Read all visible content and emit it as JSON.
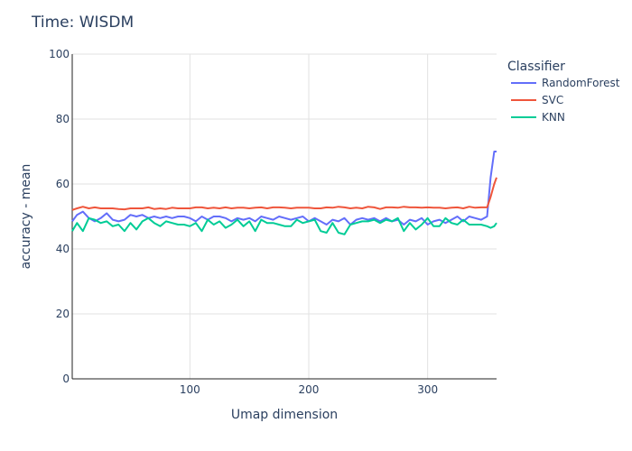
{
  "chart_data": {
    "type": "line",
    "title": "Time: WISDM",
    "xlabel": "Umap dimension",
    "ylabel": "accuracy - mean",
    "xlim": [
      1,
      358
    ],
    "ylim": [
      0,
      100
    ],
    "xticks": [
      100,
      200,
      300
    ],
    "yticks": [
      0,
      20,
      40,
      60,
      80,
      100
    ],
    "grid": true,
    "legend": {
      "title": "Classifier",
      "position": "right"
    },
    "series": [
      {
        "name": "RandomForest",
        "color": "#636efa",
        "x": [
          1,
          5,
          10,
          15,
          20,
          25,
          30,
          35,
          40,
          45,
          50,
          55,
          60,
          65,
          70,
          75,
          80,
          85,
          90,
          95,
          100,
          105,
          110,
          115,
          120,
          125,
          130,
          135,
          140,
          145,
          150,
          155,
          160,
          165,
          170,
          175,
          180,
          185,
          190,
          195,
          200,
          205,
          210,
          215,
          220,
          225,
          230,
          235,
          240,
          245,
          250,
          255,
          260,
          265,
          270,
          275,
          280,
          285,
          290,
          295,
          300,
          305,
          310,
          315,
          320,
          325,
          330,
          335,
          340,
          345,
          350,
          353,
          356,
          358
        ],
        "y": [
          48.5,
          50.5,
          51.5,
          49.5,
          48.5,
          49.5,
          51.0,
          49.0,
          48.5,
          49.0,
          50.5,
          50.0,
          50.5,
          49.5,
          50.0,
          49.5,
          50.0,
          49.5,
          50.0,
          50.0,
          49.5,
          48.5,
          50.0,
          49.0,
          50.0,
          50.0,
          49.5,
          48.5,
          49.5,
          49.0,
          49.5,
          48.5,
          50.0,
          49.5,
          49.0,
          50.0,
          49.5,
          49.0,
          49.5,
          50.0,
          48.5,
          49.5,
          48.5,
          47.5,
          49.0,
          48.5,
          49.5,
          47.5,
          49.0,
          49.5,
          49.0,
          49.5,
          48.5,
          49.5,
          48.5,
          49.0,
          47.5,
          49.0,
          48.5,
          49.5,
          47.5,
          48.5,
          49.0,
          48.0,
          49.0,
          50.0,
          48.5,
          50.0,
          49.5,
          49.0,
          50.0,
          62.0,
          70.0,
          70.0
        ]
      },
      {
        "name": "SVC",
        "color": "#ef553b",
        "x": [
          1,
          5,
          10,
          15,
          20,
          25,
          30,
          35,
          40,
          45,
          50,
          55,
          60,
          65,
          70,
          75,
          80,
          85,
          90,
          95,
          100,
          105,
          110,
          115,
          120,
          125,
          130,
          135,
          140,
          145,
          150,
          155,
          160,
          165,
          170,
          175,
          180,
          185,
          190,
          195,
          200,
          205,
          210,
          215,
          220,
          225,
          230,
          235,
          240,
          245,
          250,
          255,
          260,
          265,
          270,
          275,
          280,
          285,
          290,
          295,
          300,
          305,
          310,
          315,
          320,
          325,
          330,
          335,
          340,
          345,
          350,
          353,
          356,
          358
        ],
        "y": [
          52.0,
          52.5,
          53.0,
          52.5,
          52.8,
          52.5,
          52.5,
          52.5,
          52.3,
          52.2,
          52.5,
          52.5,
          52.5,
          52.8,
          52.3,
          52.5,
          52.3,
          52.7,
          52.5,
          52.5,
          52.5,
          52.8,
          52.8,
          52.5,
          52.7,
          52.5,
          52.8,
          52.5,
          52.7,
          52.7,
          52.5,
          52.7,
          52.8,
          52.5,
          52.8,
          52.8,
          52.7,
          52.5,
          52.7,
          52.7,
          52.7,
          52.5,
          52.5,
          52.8,
          52.7,
          53.0,
          52.8,
          52.5,
          52.7,
          52.5,
          53.0,
          52.8,
          52.3,
          52.8,
          52.8,
          52.7,
          53.0,
          52.8,
          52.8,
          52.7,
          52.8,
          52.7,
          52.7,
          52.5,
          52.7,
          52.8,
          52.5,
          53.0,
          52.7,
          52.8,
          52.8,
          56.0,
          60.0,
          62.0
        ]
      },
      {
        "name": "KNN",
        "color": "#00cc96",
        "x": [
          1,
          5,
          10,
          15,
          20,
          25,
          30,
          35,
          40,
          45,
          50,
          55,
          60,
          65,
          70,
          75,
          80,
          85,
          90,
          95,
          100,
          105,
          110,
          115,
          120,
          125,
          130,
          135,
          140,
          145,
          150,
          155,
          160,
          165,
          170,
          175,
          180,
          185,
          190,
          195,
          200,
          205,
          210,
          215,
          220,
          225,
          230,
          235,
          240,
          245,
          250,
          255,
          260,
          265,
          270,
          275,
          280,
          285,
          290,
          295,
          300,
          305,
          310,
          315,
          320,
          325,
          330,
          335,
          340,
          345,
          350,
          353,
          356,
          358
        ],
        "y": [
          45.5,
          48.0,
          45.5,
          49.5,
          49.0,
          48.0,
          48.5,
          47.0,
          47.5,
          45.5,
          48.0,
          46.0,
          48.5,
          49.5,
          48.0,
          47.0,
          48.5,
          48.0,
          47.5,
          47.5,
          47.0,
          48.0,
          45.5,
          49.0,
          47.5,
          48.5,
          46.5,
          47.5,
          49.0,
          47.0,
          48.5,
          45.5,
          49.0,
          48.0,
          48.0,
          47.5,
          47.0,
          47.0,
          49.0,
          48.0,
          48.5,
          49.0,
          45.5,
          45.0,
          48.0,
          45.0,
          44.5,
          47.5,
          48.0,
          48.5,
          48.5,
          49.0,
          48.0,
          49.0,
          48.5,
          49.5,
          45.5,
          48.0,
          46.0,
          47.5,
          49.5,
          47.0,
          47.0,
          49.5,
          48.0,
          47.5,
          49.0,
          47.5,
          47.5,
          47.5,
          47.0,
          46.5,
          47.0,
          48.0
        ]
      }
    ]
  }
}
